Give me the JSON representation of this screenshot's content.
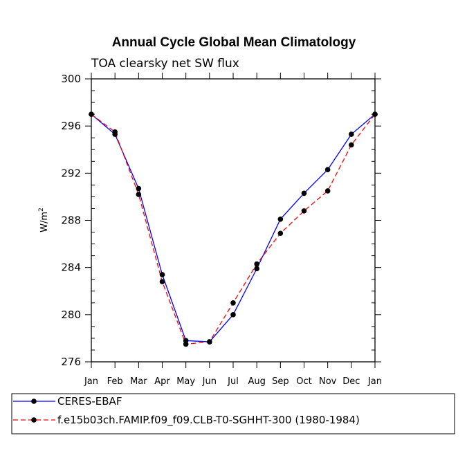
{
  "chart_data": {
    "type": "line",
    "title": "Annual Cycle Global Mean Climatology",
    "subtitle": "TOA clearsky net SW flux",
    "xlabel": "",
    "ylabel": "W/m",
    "ylabel_sup": "2",
    "ylim": [
      276,
      300
    ],
    "yticks": [
      276,
      280,
      284,
      288,
      292,
      296,
      300
    ],
    "yminor_step": 1,
    "categories": [
      "Jan",
      "Feb",
      "Mar",
      "Apr",
      "May",
      "Jun",
      "Jul",
      "Aug",
      "Sep",
      "Oct",
      "Nov",
      "Dec",
      "Jan"
    ],
    "series": [
      {
        "name": "CERES-EBAF",
        "color": "#0000ff",
        "dash": "solid",
        "values": [
          297.0,
          295.3,
          290.7,
          283.4,
          277.8,
          277.7,
          280.0,
          283.9,
          288.1,
          290.3,
          292.3,
          295.3,
          297.0
        ]
      },
      {
        "name": "f.e15b03ch.FAMIP.f09_f09.CLB-T0-SGHHT-300 (1980-1984)",
        "color": "#ff0000",
        "dash": "dashed",
        "values": [
          297.0,
          295.5,
          290.2,
          282.8,
          277.5,
          277.7,
          281.0,
          284.3,
          286.9,
          288.8,
          290.5,
          294.4,
          297.0
        ]
      }
    ]
  }
}
